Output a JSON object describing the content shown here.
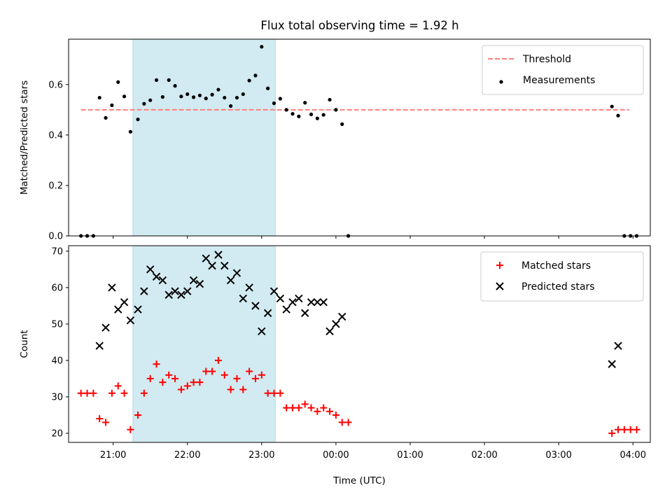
{
  "chart_data": [
    {
      "type": "scatter",
      "title": "Flux total observing time = 1.92 h",
      "ylabel": "Matched/Predicted stars",
      "xlabel": "",
      "xlim": [
        "20:24",
        "04:14"
      ],
      "ylim": [
        0,
        0.78
      ],
      "yticks": [
        0.0,
        0.2,
        0.4,
        0.6
      ],
      "ytick_labels": [
        "0.0",
        "0.2",
        "0.4",
        "0.6"
      ],
      "grid": false,
      "legend_position": "top-right",
      "shaded_interval": {
        "start": "21:16",
        "end": "23:11",
        "color": "#add8e6"
      },
      "threshold": {
        "name": "Threshold",
        "value": 0.5,
        "x_start": "20:34",
        "x_end": "03:57",
        "color": "#ff7f7f",
        "style": "dashed"
      },
      "series": [
        {
          "name": "Measurements",
          "color": "#000000",
          "marker": "dot",
          "points": [
            [
              "20:34",
              0.0
            ],
            [
              "20:39",
              0.0
            ],
            [
              "20:44",
              0.0
            ],
            [
              "20:49",
              0.548
            ],
            [
              "20:54",
              0.468
            ],
            [
              "20:59",
              0.518
            ],
            [
              "21:04",
              0.61
            ],
            [
              "21:09",
              0.553
            ],
            [
              "21:14",
              0.413
            ],
            [
              "21:20",
              0.462
            ],
            [
              "21:25",
              0.524
            ],
            [
              "21:30",
              0.538
            ],
            [
              "21:35",
              0.618
            ],
            [
              "21:40",
              0.551
            ],
            [
              "21:45",
              0.618
            ],
            [
              "21:50",
              0.595
            ],
            [
              "21:55",
              0.553
            ],
            [
              "22:00",
              0.562
            ],
            [
              "22:05",
              0.55
            ],
            [
              "22:10",
              0.557
            ],
            [
              "22:15",
              0.545
            ],
            [
              "22:20",
              0.56
            ],
            [
              "22:25",
              0.58
            ],
            [
              "22:30",
              0.548
            ],
            [
              "22:35",
              0.515
            ],
            [
              "22:40",
              0.548
            ],
            [
              "22:45",
              0.562
            ],
            [
              "22:50",
              0.616
            ],
            [
              "22:55",
              0.636
            ],
            [
              "23:00",
              0.75
            ],
            [
              "23:05",
              0.585
            ],
            [
              "23:10",
              0.526
            ],
            [
              "23:15",
              0.544
            ],
            [
              "23:20",
              0.5
            ],
            [
              "23:25",
              0.484
            ],
            [
              "23:30",
              0.474
            ],
            [
              "23:35",
              0.528
            ],
            [
              "23:40",
              0.482
            ],
            [
              "23:45",
              0.466
            ],
            [
              "23:50",
              0.48
            ],
            [
              "23:55",
              0.54
            ],
            [
              "00:00",
              0.5
            ],
            [
              "00:05",
              0.443
            ],
            [
              "00:10",
              0.0
            ],
            [
              "03:43",
              0.513
            ],
            [
              "03:48",
              0.477
            ],
            [
              "03:53",
              0.0
            ],
            [
              "03:58",
              0.0
            ],
            [
              "04:03",
              0.0
            ]
          ]
        }
      ]
    },
    {
      "type": "scatter",
      "title": "",
      "ylabel": "Count",
      "xlabel": "Time (UTC)",
      "xlim": [
        "20:24",
        "04:14"
      ],
      "ylim": [
        17.5,
        71.5
      ],
      "yticks": [
        20,
        30,
        40,
        50,
        60,
        70
      ],
      "ytick_labels": [
        "20",
        "30",
        "40",
        "50",
        "60",
        "70"
      ],
      "xticks": [
        "21:00",
        "22:00",
        "23:00",
        "00:00",
        "01:00",
        "02:00",
        "03:00",
        "04:00"
      ],
      "xtick_labels": [
        "21:00",
        "22:00",
        "23:00",
        "00:00",
        "01:00",
        "02:00",
        "03:00",
        "04:00"
      ],
      "grid": false,
      "legend_position": "top-right",
      "shaded_interval": {
        "start": "21:16",
        "end": "23:11",
        "color": "#add8e6"
      },
      "series": [
        {
          "name": "Matched stars",
          "color": "#ff0000",
          "marker": "plus",
          "points": [
            [
              "20:34",
              31
            ],
            [
              "20:39",
              31
            ],
            [
              "20:44",
              31
            ],
            [
              "20:49",
              24
            ],
            [
              "20:54",
              23
            ],
            [
              "20:59",
              31
            ],
            [
              "21:04",
              33
            ],
            [
              "21:09",
              31
            ],
            [
              "21:14",
              21
            ],
            [
              "21:20",
              25
            ],
            [
              "21:25",
              31
            ],
            [
              "21:30",
              35
            ],
            [
              "21:35",
              39
            ],
            [
              "21:40",
              34
            ],
            [
              "21:45",
              36
            ],
            [
              "21:50",
              35
            ],
            [
              "21:55",
              32
            ],
            [
              "22:00",
              33
            ],
            [
              "22:05",
              34
            ],
            [
              "22:10",
              34
            ],
            [
              "22:15",
              37
            ],
            [
              "22:20",
              37
            ],
            [
              "22:25",
              40
            ],
            [
              "22:30",
              36
            ],
            [
              "22:35",
              32
            ],
            [
              "22:40",
              35
            ],
            [
              "22:45",
              32
            ],
            [
              "22:50",
              37
            ],
            [
              "22:55",
              35
            ],
            [
              "23:00",
              36
            ],
            [
              "23:05",
              31
            ],
            [
              "23:10",
              31
            ],
            [
              "23:15",
              31
            ],
            [
              "23:20",
              27
            ],
            [
              "23:25",
              27
            ],
            [
              "23:30",
              27
            ],
            [
              "23:35",
              28
            ],
            [
              "23:40",
              27
            ],
            [
              "23:45",
              26
            ],
            [
              "23:50",
              27
            ],
            [
              "23:55",
              26
            ],
            [
              "00:00",
              25
            ],
            [
              "00:05",
              23
            ],
            [
              "00:10",
              23
            ],
            [
              "03:43",
              20
            ],
            [
              "03:48",
              21
            ],
            [
              "03:53",
              21
            ],
            [
              "03:58",
              21
            ],
            [
              "04:03",
              21
            ]
          ]
        },
        {
          "name": "Predicted stars",
          "color": "#000000",
          "marker": "x",
          "points": [
            [
              "20:49",
              44
            ],
            [
              "20:54",
              49
            ],
            [
              "20:59",
              60
            ],
            [
              "21:04",
              54
            ],
            [
              "21:09",
              56
            ],
            [
              "21:14",
              51
            ],
            [
              "21:20",
              54
            ],
            [
              "21:25",
              59
            ],
            [
              "21:30",
              65
            ],
            [
              "21:35",
              63
            ],
            [
              "21:40",
              62
            ],
            [
              "21:45",
              58
            ],
            [
              "21:50",
              59
            ],
            [
              "21:55",
              58
            ],
            [
              "22:00",
              59
            ],
            [
              "22:05",
              62
            ],
            [
              "22:10",
              61
            ],
            [
              "22:15",
              68
            ],
            [
              "22:20",
              66
            ],
            [
              "22:25",
              69
            ],
            [
              "22:30",
              66
            ],
            [
              "22:35",
              62
            ],
            [
              "22:40",
              64
            ],
            [
              "22:45",
              57
            ],
            [
              "22:50",
              60
            ],
            [
              "22:55",
              55
            ],
            [
              "23:00",
              48
            ],
            [
              "23:05",
              53
            ],
            [
              "23:10",
              59
            ],
            [
              "23:15",
              57
            ],
            [
              "23:20",
              54
            ],
            [
              "23:25",
              56
            ],
            [
              "23:30",
              57
            ],
            [
              "23:35",
              53
            ],
            [
              "23:40",
              56
            ],
            [
              "23:45",
              56
            ],
            [
              "23:50",
              56
            ],
            [
              "23:55",
              48
            ],
            [
              "00:00",
              50
            ],
            [
              "00:05",
              52
            ],
            [
              "03:43",
              39
            ],
            [
              "03:48",
              44
            ]
          ]
        }
      ]
    }
  ]
}
